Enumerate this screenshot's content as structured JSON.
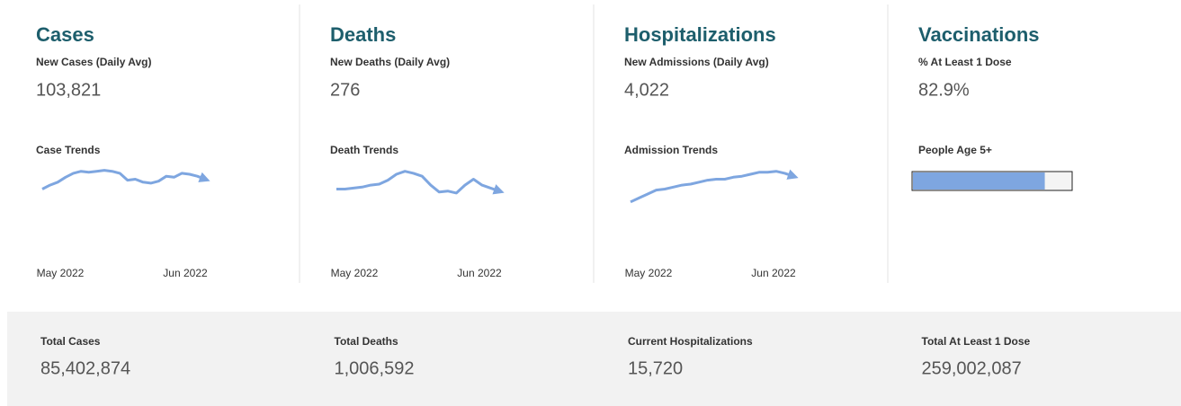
{
  "panels": [
    {
      "title": "Cases",
      "metric_label": "New Cases (Daily Avg)",
      "metric_value": "103,821",
      "trend": {
        "type": "line",
        "title": "Case Trends",
        "x_labels": [
          "May 2022",
          "Jun 2022"
        ],
        "color": "#7ea6e0",
        "ylim": [
          0,
          100
        ],
        "values": [
          45,
          49,
          52,
          57,
          61,
          63,
          62,
          63,
          64,
          63,
          61,
          54,
          55,
          52,
          51,
          53,
          58,
          57,
          61,
          60,
          58,
          55
        ]
      }
    },
    {
      "title": "Deaths",
      "metric_label": "New Deaths (Daily Avg)",
      "metric_value": "276",
      "trend": {
        "type": "line",
        "title": "Death Trends",
        "x_labels": [
          "May 2022",
          "Jun 2022"
        ],
        "color": "#7ea6e0",
        "ylim": [
          0,
          100
        ],
        "values": [
          45,
          45,
          46,
          47,
          49,
          50,
          54,
          60,
          63,
          61,
          58,
          49,
          42,
          43,
          41,
          49,
          55,
          49,
          46,
          43
        ]
      }
    },
    {
      "title": "Hospitalizations",
      "metric_label": "New Admissions (Daily Avg)",
      "metric_value": "4,022",
      "trend": {
        "type": "line",
        "title": "Admission Trends",
        "x_labels": [
          "May 2022",
          "Jun 2022"
        ],
        "color": "#7ea6e0",
        "ylim": [
          0,
          100
        ],
        "values": [
          32,
          36,
          40,
          44,
          45,
          47,
          49,
          50,
          52,
          54,
          55,
          55,
          57,
          58,
          60,
          62,
          62,
          63,
          61,
          58
        ]
      }
    },
    {
      "title": "Vaccinations",
      "metric_label": "% At Least 1 Dose",
      "metric_value": "82.9%",
      "trend": {
        "type": "bar",
        "title": "People Age 5+",
        "value": 82.9,
        "xlim": [
          0,
          100
        ],
        "color": "#7ea6e0"
      }
    }
  ],
  "totals": [
    {
      "label": "Total Cases",
      "value": "85,402,874"
    },
    {
      "label": "Total Deaths",
      "value": "1,006,592"
    },
    {
      "label": "Current Hospitalizations",
      "value": "15,720"
    },
    {
      "label": "Total At Least 1 Dose",
      "value": "259,002,087"
    }
  ]
}
